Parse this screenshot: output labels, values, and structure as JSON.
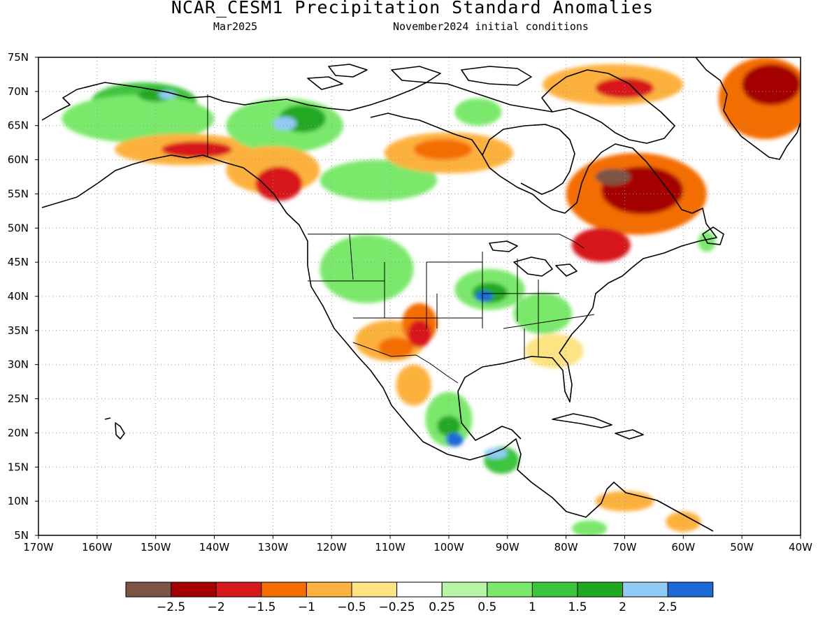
{
  "header": {
    "title": "NCAR_CESM1 Precipitation Standard Anomalies",
    "valid_month": "Mar2025",
    "init": "November2024 initial conditions"
  },
  "map": {
    "lon_range": [
      -170,
      -40
    ],
    "lat_range": [
      5,
      75
    ],
    "lon_ticks": [
      "170W",
      "160W",
      "150W",
      "140W",
      "130W",
      "120W",
      "110W",
      "100W",
      "90W",
      "80W",
      "70W",
      "60W",
      "50W",
      "40W"
    ],
    "lat_ticks": [
      "5N",
      "10N",
      "15N",
      "20N",
      "25N",
      "30N",
      "35N",
      "40N",
      "45N",
      "50N",
      "55N",
      "60N",
      "65N",
      "70N",
      "75N"
    ],
    "grid": "dotted"
  },
  "colorbar": {
    "colors": [
      "#7b5444",
      "#a50000",
      "#d7191c",
      "#f46d00",
      "#fdb13e",
      "#fee383",
      "#ffffff",
      "#b8f5a6",
      "#7ae86b",
      "#3cc53c",
      "#20a820",
      "#91cbf5",
      "#1c6ad8"
    ],
    "labels": [
      "−2.5",
      "−2",
      "−1.5",
      "−1",
      "−0.5",
      "−0.25",
      "0.25",
      "0.5",
      "1",
      "1.5",
      "2",
      "2.5"
    ]
  },
  "anomaly_regions": [
    {
      "name": "alaska-north-wet",
      "level": 9,
      "lon": -152,
      "lat": 68.5,
      "rx": 9,
      "ry": 2.8
    },
    {
      "name": "alaska-central-wet",
      "level": 8,
      "lon": -153,
      "lat": 66,
      "rx": 13,
      "ry": 3.5
    },
    {
      "name": "alaska-wet-peak",
      "level": 10,
      "lon": -150,
      "lat": 69.5,
      "rx": 3,
      "ry": 1
    },
    {
      "name": "alaska-blue",
      "level": 11,
      "lon": -148,
      "lat": 69.5,
      "rx": 1.5,
      "ry": 0.6
    },
    {
      "name": "alaska-south-dry",
      "level": 4,
      "lon": -145,
      "lat": 61.5,
      "rx": 12,
      "ry": 2.3
    },
    {
      "name": "alaska-south-dry-core",
      "level": 2,
      "lon": -143,
      "lat": 61.5,
      "rx": 6,
      "ry": 1.2
    },
    {
      "name": "yukon-wet",
      "level": 8,
      "lon": -128,
      "lat": 65,
      "rx": 10,
      "ry": 4
    },
    {
      "name": "yukon-wet-core",
      "level": 10,
      "lon": -125,
      "lat": 66,
      "rx": 4,
      "ry": 2
    },
    {
      "name": "yukon-blue",
      "level": 11,
      "lon": -128,
      "lat": 65.3,
      "rx": 2,
      "ry": 1
    },
    {
      "name": "bc-coast-dry",
      "level": 4,
      "lon": -130,
      "lat": 58.5,
      "rx": 8,
      "ry": 3.5
    },
    {
      "name": "bc-coast-dry-core",
      "level": 2,
      "lon": -129,
      "lat": 56.5,
      "rx": 4,
      "ry": 2.5
    },
    {
      "name": "prairies-wet",
      "level": 8,
      "lon": -112,
      "lat": 57,
      "rx": 10,
      "ry": 3
    },
    {
      "name": "hudson-west-dry",
      "level": 4,
      "lon": -100,
      "lat": 61,
      "rx": 11,
      "ry": 3
    },
    {
      "name": "hudson-west-dry-core",
      "level": 3,
      "lon": -101,
      "lat": 61.5,
      "rx": 5,
      "ry": 1.5
    },
    {
      "name": "arctic-dry",
      "level": 4,
      "lon": -72,
      "lat": 71,
      "rx": 12,
      "ry": 3
    },
    {
      "name": "baffin-dry-core",
      "level": 2,
      "lon": -70,
      "lat": 70.5,
      "rx": 5,
      "ry": 1.5
    },
    {
      "name": "labrador-dry",
      "level": 3,
      "lon": -68,
      "lat": 55,
      "rx": 12,
      "ry": 6
    },
    {
      "name": "labrador-dry-core",
      "level": 1,
      "lon": -67,
      "lat": 55.5,
      "rx": 7,
      "ry": 3.5
    },
    {
      "name": "labrador-brown",
      "level": 0,
      "lon": -72,
      "lat": 57.5,
      "rx": 3,
      "ry": 1.2
    },
    {
      "name": "quebec-dry",
      "level": 2,
      "lon": -74,
      "lat": 47.5,
      "rx": 5,
      "ry": 2.5
    },
    {
      "name": "greenland-dry",
      "level": 3,
      "lon": -46,
      "lat": 69,
      "rx": 8,
      "ry": 6
    },
    {
      "name": "greenland-dry-core",
      "level": 1,
      "lon": -45,
      "lat": 71,
      "rx": 5,
      "ry": 3
    },
    {
      "name": "us-west-wet",
      "level": 8,
      "lon": -114,
      "lat": 44,
      "rx": 8,
      "ry": 5
    },
    {
      "name": "us-southwest-dry",
      "level": 4,
      "lon": -110,
      "lat": 33.5,
      "rx": 6,
      "ry": 3
    },
    {
      "name": "us-southwest-dry-core",
      "level": 3,
      "lon": -109,
      "lat": 32.5,
      "rx": 3,
      "ry": 1.5
    },
    {
      "name": "southern-plains-dry",
      "level": 3,
      "lon": -105,
      "lat": 36,
      "rx": 3,
      "ry": 3
    },
    {
      "name": "southern-plains-dry-core",
      "level": 2,
      "lon": -105,
      "lat": 34.5,
      "rx": 2,
      "ry": 2
    },
    {
      "name": "midwest-wet",
      "level": 8,
      "lon": -93,
      "lat": 41,
      "rx": 6,
      "ry": 3
    },
    {
      "name": "midwest-wet-core",
      "level": 10,
      "lon": -93,
      "lat": 40.5,
      "rx": 3,
      "ry": 1.5
    },
    {
      "name": "midwest-blue",
      "level": 12,
      "lon": -94,
      "lat": 40,
      "rx": 1.5,
      "ry": 0.8
    },
    {
      "name": "ohio-valley-wet",
      "level": 8,
      "lon": -84,
      "lat": 37.5,
      "rx": 5,
      "ry": 3
    },
    {
      "name": "southeast-dry",
      "level": 5,
      "lon": -82,
      "lat": 32,
      "rx": 5,
      "ry": 2.5
    },
    {
      "name": "mexico-wet",
      "level": 8,
      "lon": -100,
      "lat": 22,
      "rx": 4,
      "ry": 4
    },
    {
      "name": "mexico-wet-core",
      "level": 10,
      "lon": -100,
      "lat": 21,
      "rx": 2,
      "ry": 1.5
    },
    {
      "name": "mexico-blue",
      "level": 12,
      "lon": -99,
      "lat": 19,
      "rx": 1.5,
      "ry": 1
    },
    {
      "name": "central-america-wet",
      "level": 9,
      "lon": -91,
      "lat": 16,
      "rx": 3,
      "ry": 2
    },
    {
      "name": "yucatan-blue",
      "level": 11,
      "lon": -92,
      "lat": 17,
      "rx": 2,
      "ry": 0.8
    },
    {
      "name": "west-mexico-dry",
      "level": 4,
      "lon": -106,
      "lat": 27,
      "rx": 3,
      "ry": 3
    },
    {
      "name": "venezuela-dry",
      "level": 4,
      "lon": -70,
      "lat": 10,
      "rx": 5,
      "ry": 1.5
    },
    {
      "name": "guyana-dry",
      "level": 4,
      "lon": -60,
      "lat": 7,
      "rx": 3,
      "ry": 1.5
    },
    {
      "name": "colombia-wet",
      "level": 8,
      "lon": -76,
      "lat": 6,
      "rx": 3,
      "ry": 1.2
    },
    {
      "name": "newfoundland-wet",
      "level": 8,
      "lon": -56,
      "lat": 48,
      "rx": 1.5,
      "ry": 1.5
    },
    {
      "name": "nunavut-wet",
      "level": 8,
      "lon": -95,
      "lat": 67,
      "rx": 4,
      "ry": 2
    }
  ]
}
